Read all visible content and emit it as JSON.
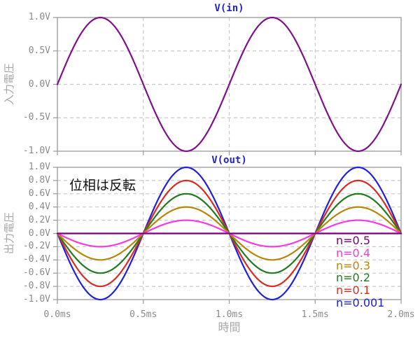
{
  "figure": {
    "top_title": "V(in)",
    "bottom_title": "V(out)",
    "annotation": "位相は反転",
    "xlabel": "時間",
    "top_ylabel": "入力電圧",
    "bottom_ylabel": "出力電圧"
  },
  "colors": {
    "title_text": "#2222cc",
    "tick_text": "#8a8a8a",
    "axis_label_text": "#a8a8a8",
    "annotation_text": "#111111",
    "grid": "#c9c9c9",
    "frame": "#999999"
  },
  "axes": {
    "xticks": [
      {
        "label": "0.0ms",
        "v": 0.0
      },
      {
        "label": "0.5ms",
        "v": 0.5
      },
      {
        "label": "1.0ms",
        "v": 1.0
      },
      {
        "label": "1.5ms",
        "v": 1.5
      },
      {
        "label": "2.0ms",
        "v": 2.0
      }
    ],
    "top_yticks": [
      {
        "label": "1.0V",
        "v": 1.0
      },
      {
        "label": "0.5V",
        "v": 0.5
      },
      {
        "label": "0.0V",
        "v": 0.0
      },
      {
        "label": "-0.5V",
        "v": -0.5
      },
      {
        "label": "-1.0V",
        "v": -1.0
      }
    ],
    "bottom_yticks": [
      {
        "label": "1.0V",
        "v": 1.0
      },
      {
        "label": "0.8V",
        "v": 0.8
      },
      {
        "label": "0.6V",
        "v": 0.6
      },
      {
        "label": "0.4V",
        "v": 0.4
      },
      {
        "label": "0.2V",
        "v": 0.2
      },
      {
        "label": "0.0V",
        "v": 0.0
      },
      {
        "label": "-0.2V",
        "v": -0.2
      },
      {
        "label": "-0.4V",
        "v": -0.4
      },
      {
        "label": "-0.6V",
        "v": -0.6
      },
      {
        "label": "-0.8V",
        "v": -0.8
      },
      {
        "label": "-1.0V",
        "v": -1.0
      }
    ]
  },
  "legend": [
    {
      "label": "n=0.5",
      "color": "#770077"
    },
    {
      "label": "n=0.4",
      "color": "#f83ae2"
    },
    {
      "label": "n=0.3",
      "color": "#b8860b"
    },
    {
      "label": "n=0.2",
      "color": "#227a22"
    },
    {
      "label": "n=0.1",
      "color": "#dd2a1f"
    },
    {
      "label": "n=0.001",
      "color": "#2020dd"
    }
  ],
  "chart_data": [
    {
      "type": "line",
      "title": "V(in)",
      "xlabel": "時間",
      "ylabel": "入力電圧",
      "x_unit": "ms",
      "x_range": [
        0.0,
        2.0
      ],
      "ylim": [
        -1.0,
        1.0
      ],
      "yticks": [
        -1.0,
        -0.5,
        0.0,
        0.5,
        1.0
      ],
      "xticks": [
        0.0,
        0.5,
        1.0,
        1.5,
        2.0
      ],
      "grid": true,
      "waveform": "sine",
      "period_ms": 1.0,
      "series": [
        {
          "name": "V(in)",
          "color": "#80108c",
          "amplitude_V": 1.0,
          "inverted": false
        }
      ]
    },
    {
      "type": "line",
      "title": "V(out)",
      "xlabel": "時間",
      "ylabel": "出力電圧",
      "x_unit": "ms",
      "x_range": [
        0.0,
        2.0
      ],
      "ylim": [
        -1.0,
        1.0
      ],
      "yticks": [
        -1.0,
        -0.8,
        -0.6,
        -0.4,
        -0.2,
        0.0,
        0.2,
        0.4,
        0.6,
        0.8,
        1.0
      ],
      "xticks": [
        0.0,
        0.5,
        1.0,
        1.5,
        2.0
      ],
      "grid": true,
      "waveform": "sine",
      "period_ms": 1.0,
      "annotation": "位相は反転",
      "legend_position": "lower right",
      "series": [
        {
          "name": "n=0.001",
          "color": "#2020dd",
          "amplitude_V": 1.0,
          "inverted": true
        },
        {
          "name": "n=0.1",
          "color": "#dd2a1f",
          "amplitude_V": 0.8,
          "inverted": true
        },
        {
          "name": "n=0.2",
          "color": "#227a22",
          "amplitude_V": 0.6,
          "inverted": true
        },
        {
          "name": "n=0.3",
          "color": "#b8860b",
          "amplitude_V": 0.4,
          "inverted": true
        },
        {
          "name": "n=0.4",
          "color": "#f83ae2",
          "amplitude_V": 0.2,
          "inverted": true
        },
        {
          "name": "n=0.5",
          "color": "#770077",
          "amplitude_V": 0.0,
          "inverted": true
        }
      ]
    }
  ]
}
